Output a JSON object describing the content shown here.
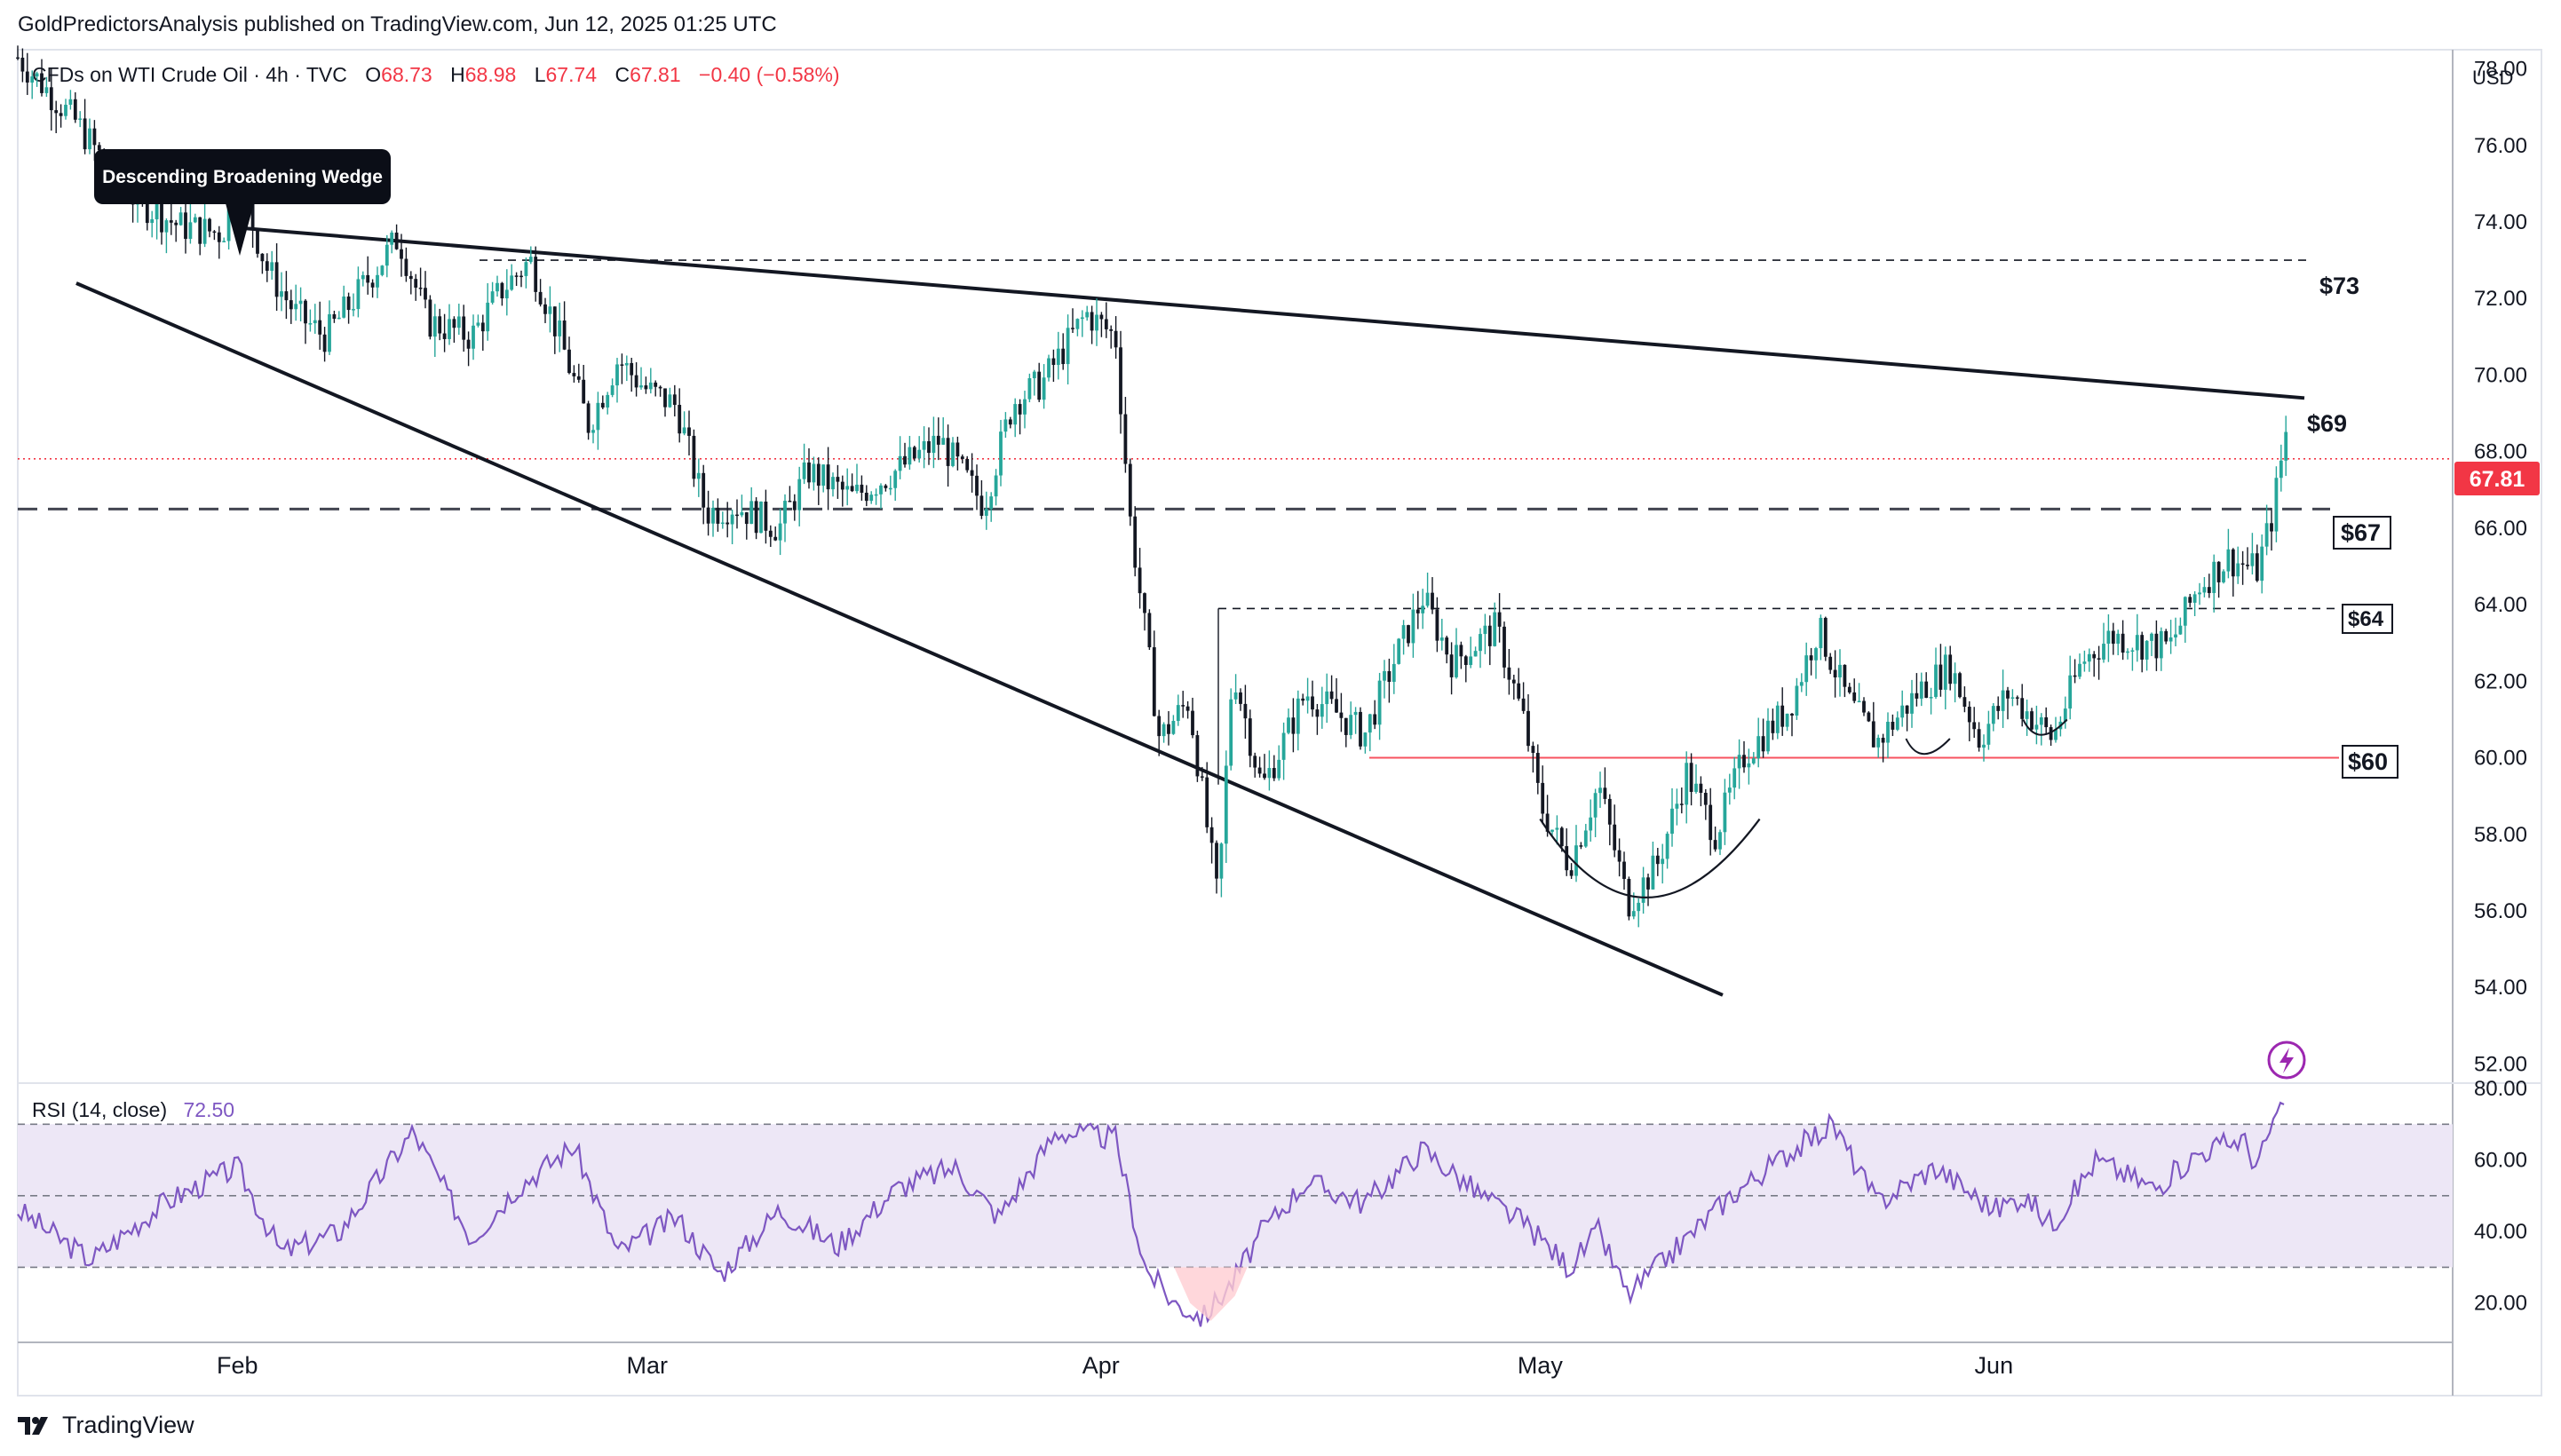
{
  "header": {
    "published_line": "GoldPredictorsAnalysis published on TradingView.com, Jun 12, 2025 01:25 UTC"
  },
  "legend": {
    "symbol": "CFDs on WTI Crude Oil · 4h · TVC",
    "open_label": "O",
    "open": "68.73",
    "high_label": "H",
    "high": "68.98",
    "low_label": "L",
    "low": "67.74",
    "close_label": "C",
    "close": "67.81",
    "change": "−0.40 (−0.58%)"
  },
  "currency": "USD",
  "price_badge": "67.81",
  "pattern_label": "Descending Broadening Wedge",
  "level_labels": {
    "l73": "$73",
    "l69": "$69",
    "l67": "$67",
    "l64": "$64",
    "l60": "$60"
  },
  "rsi": {
    "label": "RSI (14, close)",
    "value": "72.50"
  },
  "footer": {
    "brand": "TradingView"
  },
  "colors": {
    "up": "#26a69a",
    "down": "#131722",
    "rsi_line": "#7e57c2",
    "rsi_band": "#ede7f6",
    "last_price": "#f23645",
    "support": "#f7525f",
    "wedge": "#131722"
  },
  "chart_data": [
    {
      "type": "candlestick",
      "timeframe": "4h",
      "ylim": [
        51.5,
        78.5
      ],
      "yticks": [
        "52.00",
        "54.00",
        "56.00",
        "58.00",
        "60.00",
        "62.00",
        "64.00",
        "66.00",
        "68.00",
        "70.00",
        "72.00",
        "74.00",
        "76.00",
        "78.00"
      ],
      "x_tick_labels": [
        "Feb",
        "Mar",
        "Apr",
        "May",
        "Jun"
      ],
      "last_price": 67.81,
      "path_points": [
        {
          "t": "Jan 17",
          "price": 78.3
        },
        {
          "t": "Jan 21",
          "price": 76.6
        },
        {
          "t": "Jan 23",
          "price": 75.5
        },
        {
          "t": "Jan 25",
          "price": 74.6
        },
        {
          "t": "Jan 28",
          "price": 73.9
        },
        {
          "t": "Jan 31",
          "price": 73.7
        },
        {
          "t": "Feb 1",
          "price": 75.2
        },
        {
          "t": "Feb 3",
          "price": 72.8
        },
        {
          "t": "Feb 5",
          "price": 71.6
        },
        {
          "t": "Feb 7",
          "price": 71.0
        },
        {
          "t": "Feb 9",
          "price": 72.0
        },
        {
          "t": "Feb 12",
          "price": 73.6
        },
        {
          "t": "Feb 14",
          "price": 71.4
        },
        {
          "t": "Feb 17",
          "price": 71.0
        },
        {
          "t": "Feb 19",
          "price": 72.2
        },
        {
          "t": "Feb 21",
          "price": 73.0
        },
        {
          "t": "Feb 23",
          "price": 71.0
        },
        {
          "t": "Feb 25",
          "price": 68.7
        },
        {
          "t": "Feb 27",
          "price": 70.4
        },
        {
          "t": "Mar 1",
          "price": 69.6
        },
        {
          "t": "Mar 3",
          "price": 69.2
        },
        {
          "t": "Mar 5",
          "price": 66.4
        },
        {
          "t": "Mar 7",
          "price": 66.6
        },
        {
          "t": "Mar 10",
          "price": 66.0
        },
        {
          "t": "Mar 12",
          "price": 67.5
        },
        {
          "t": "Mar 15",
          "price": 66.8
        },
        {
          "t": "Mar 18",
          "price": 67.5
        },
        {
          "t": "Mar 21",
          "price": 68.3
        },
        {
          "t": "Mar 24",
          "price": 66.6
        },
        {
          "t": "Mar 26",
          "price": 69.3
        },
        {
          "t": "Mar 28",
          "price": 69.8
        },
        {
          "t": "Mar 31",
          "price": 71.6
        },
        {
          "t": "Apr 2",
          "price": 71.0
        },
        {
          "t": "Apr 3",
          "price": 66.2
        },
        {
          "t": "Apr 5",
          "price": 60.5
        },
        {
          "t": "Apr 7",
          "price": 61.5
        },
        {
          "t": "Apr 9",
          "price": 56.2
        },
        {
          "t": "Apr 10",
          "price": 62.4
        },
        {
          "t": "Apr 12",
          "price": 59.2
        },
        {
          "t": "Apr 15",
          "price": 61.7
        },
        {
          "t": "Apr 17",
          "price": 61.2
        },
        {
          "t": "Apr 19",
          "price": 60.6
        },
        {
          "t": "Apr 21",
          "price": 62.5
        },
        {
          "t": "Apr 23",
          "price": 64.2
        },
        {
          "t": "Apr 25",
          "price": 62.5
        },
        {
          "t": "Apr 28",
          "price": 63.4
        },
        {
          "t": "Apr 30",
          "price": 60.8
        },
        {
          "t": "May 1",
          "price": 58.8
        },
        {
          "t": "May 3",
          "price": 57.2
        },
        {
          "t": "May 5",
          "price": 59.3
        },
        {
          "t": "May 7",
          "price": 56.2
        },
        {
          "t": "May 9",
          "price": 57.2
        },
        {
          "t": "May 11",
          "price": 59.6
        },
        {
          "t": "May 13",
          "price": 58.0
        },
        {
          "t": "May 15",
          "price": 60.1
        },
        {
          "t": "May 18",
          "price": 61.3
        },
        {
          "t": "May 20",
          "price": 63.4
        },
        {
          "t": "May 22",
          "price": 61.5
        },
        {
          "t": "May 24",
          "price": 60.4
        },
        {
          "t": "May 27",
          "price": 61.8
        },
        {
          "t": "May 29",
          "price": 62.4
        },
        {
          "t": "May 31",
          "price": 60.5
        },
        {
          "t": "Jun 2",
          "price": 61.7
        },
        {
          "t": "Jun 4",
          "price": 60.9
        },
        {
          "t": "Jun 5",
          "price": 60.5
        },
        {
          "t": "Jun 7",
          "price": 62.5
        },
        {
          "t": "Jun 9",
          "price": 63.2
        },
        {
          "t": "Jun 11",
          "price": 63.0
        },
        {
          "t": "Jun 13",
          "price": 62.9
        },
        {
          "t": "Jun 15",
          "price": 64.5
        },
        {
          "t": "Jun 17",
          "price": 65.2
        },
        {
          "t": "Jun 19",
          "price": 64.9
        },
        {
          "t": "Jun 20",
          "price": 66.3
        },
        {
          "t": "Jun 21",
          "price": 68.6
        },
        {
          "t": "Jun 21",
          "price": 67.81
        }
      ],
      "levels": [
        {
          "label": "$73",
          "price": 73.0,
          "style": "dashed"
        },
        {
          "label": "$69",
          "price": 69.4,
          "style": "wedge-upper-end"
        },
        {
          "label": "$67",
          "price": 66.5,
          "style": "dashed"
        },
        {
          "label": "$64",
          "price": 63.9,
          "style": "dashed"
        },
        {
          "label": "$60",
          "price": 60.0,
          "style": "solid-red"
        }
      ],
      "wedge": {
        "upper": [
          {
            "t": "Feb 1",
            "price": 73.85
          },
          {
            "t": "Jun 21",
            "price": 69.4
          }
        ],
        "lower": [
          {
            "t": "Jan 21",
            "price": 72.4
          },
          {
            "t": "May 10",
            "price": 53.8
          }
        ]
      }
    },
    {
      "type": "line",
      "name": "RSI (14, close)",
      "ylim": [
        9,
        81
      ],
      "yticks": [
        "20.00",
        "40.00",
        "60.00",
        "80.00"
      ],
      "bands": {
        "upper": 70,
        "mid": 50,
        "lower": 30
      },
      "last_value": 72.5,
      "path_points": [
        {
          "t": "Jan 17",
          "v": 46
        },
        {
          "t": "Jan 22",
          "v": 32
        },
        {
          "t": "Jan 27",
          "v": 48
        },
        {
          "t": "Feb 1",
          "v": 58
        },
        {
          "t": "Feb 4",
          "v": 34
        },
        {
          "t": "Feb 8",
          "v": 40
        },
        {
          "t": "Feb 13",
          "v": 68
        },
        {
          "t": "Feb 17",
          "v": 38
        },
        {
          "t": "Feb 20",
          "v": 52
        },
        {
          "t": "Feb 24",
          "v": 64
        },
        {
          "t": "Feb 27",
          "v": 34
        },
        {
          "t": "Mar 3",
          "v": 44
        },
        {
          "t": "Mar 6",
          "v": 28
        },
        {
          "t": "Mar 10",
          "v": 46
        },
        {
          "t": "Mar 14",
          "v": 36
        },
        {
          "t": "Mar 18",
          "v": 52
        },
        {
          "t": "Mar 22",
          "v": 58
        },
        {
          "t": "Mar 25",
          "v": 44
        },
        {
          "t": "Mar 29",
          "v": 68
        },
        {
          "t": "Apr 2",
          "v": 66
        },
        {
          "t": "Apr 4",
          "v": 30
        },
        {
          "t": "Apr 6",
          "v": 20
        },
        {
          "t": "Apr 8",
          "v": 16
        },
        {
          "t": "Apr 10",
          "v": 26
        },
        {
          "t": "Apr 12",
          "v": 40
        },
        {
          "t": "Apr 15",
          "v": 54
        },
        {
          "t": "Apr 19",
          "v": 48
        },
        {
          "t": "Apr 23",
          "v": 63
        },
        {
          "t": "Apr 27",
          "v": 50
        },
        {
          "t": "Apr 30",
          "v": 42
        },
        {
          "t": "May 3",
          "v": 30
        },
        {
          "t": "May 5",
          "v": 40
        },
        {
          "t": "May 7",
          "v": 22
        },
        {
          "t": "May 10",
          "v": 34
        },
        {
          "t": "May 14",
          "v": 50
        },
        {
          "t": "May 18",
          "v": 62
        },
        {
          "t": "May 21",
          "v": 70
        },
        {
          "t": "May 24",
          "v": 48
        },
        {
          "t": "May 28",
          "v": 58
        },
        {
          "t": "Jun 1",
          "v": 46
        },
        {
          "t": "Jun 3",
          "v": 50
        },
        {
          "t": "Jun 5",
          "v": 42
        },
        {
          "t": "Jun 8",
          "v": 60
        },
        {
          "t": "Jun 12",
          "v": 52
        },
        {
          "t": "Jun 15",
          "v": 62
        },
        {
          "t": "Jun 18",
          "v": 66
        },
        {
          "t": "Jun 19",
          "v": 58
        },
        {
          "t": "Jun 20",
          "v": 70
        },
        {
          "t": "Jun 21",
          "v": 75
        },
        {
          "t": "Jun 21",
          "v": 72.5
        }
      ]
    }
  ]
}
